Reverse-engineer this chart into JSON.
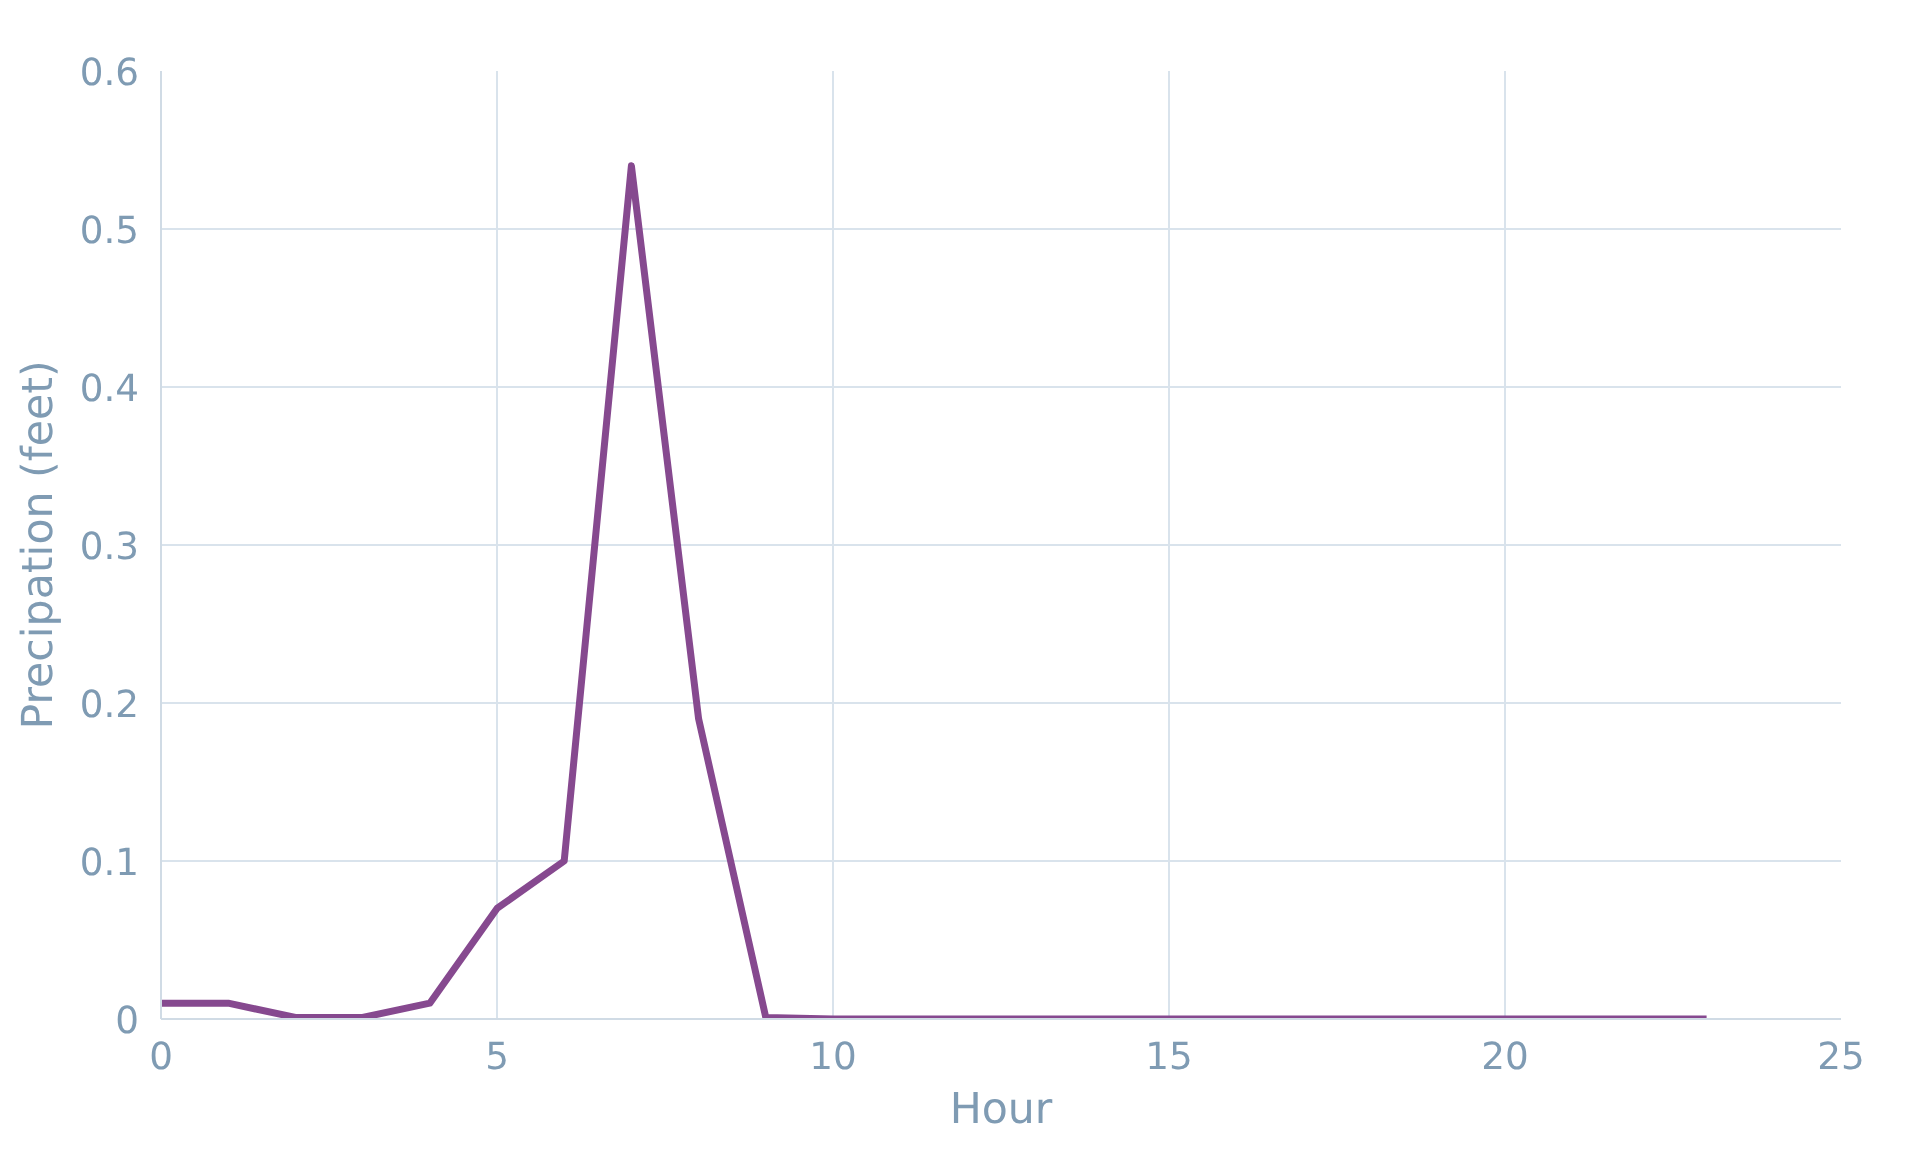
{
  "chart_data": {
    "type": "line",
    "xlabel": "Hour",
    "ylabel": "Precipation (feet)",
    "x": [
      0,
      1,
      2,
      3,
      4,
      5,
      6,
      7,
      8,
      9,
      10,
      11,
      12,
      13,
      14,
      15,
      16,
      17,
      18,
      19,
      20,
      21,
      22,
      23
    ],
    "series": [
      {
        "color": "#86498f",
        "values": [
          0.01,
          0.01,
          0.001,
          0.001,
          0.01,
          0.07,
          0.1,
          0.54,
          0.19,
          0.001,
          0,
          0,
          0,
          0,
          0,
          0,
          0,
          0,
          0,
          0,
          0,
          0,
          0,
          0
        ]
      }
    ],
    "xlim": [
      0,
      25
    ],
    "ylim": [
      0,
      0.6
    ],
    "xticks": [
      0,
      5,
      10,
      15,
      20,
      25
    ],
    "yticks": [
      {
        "value": 0,
        "label": "0"
      },
      0.1,
      0.2,
      0.3,
      0.4,
      0.5,
      0.6
    ],
    "grid": true,
    "marker": "none",
    "line_style": "solid"
  }
}
